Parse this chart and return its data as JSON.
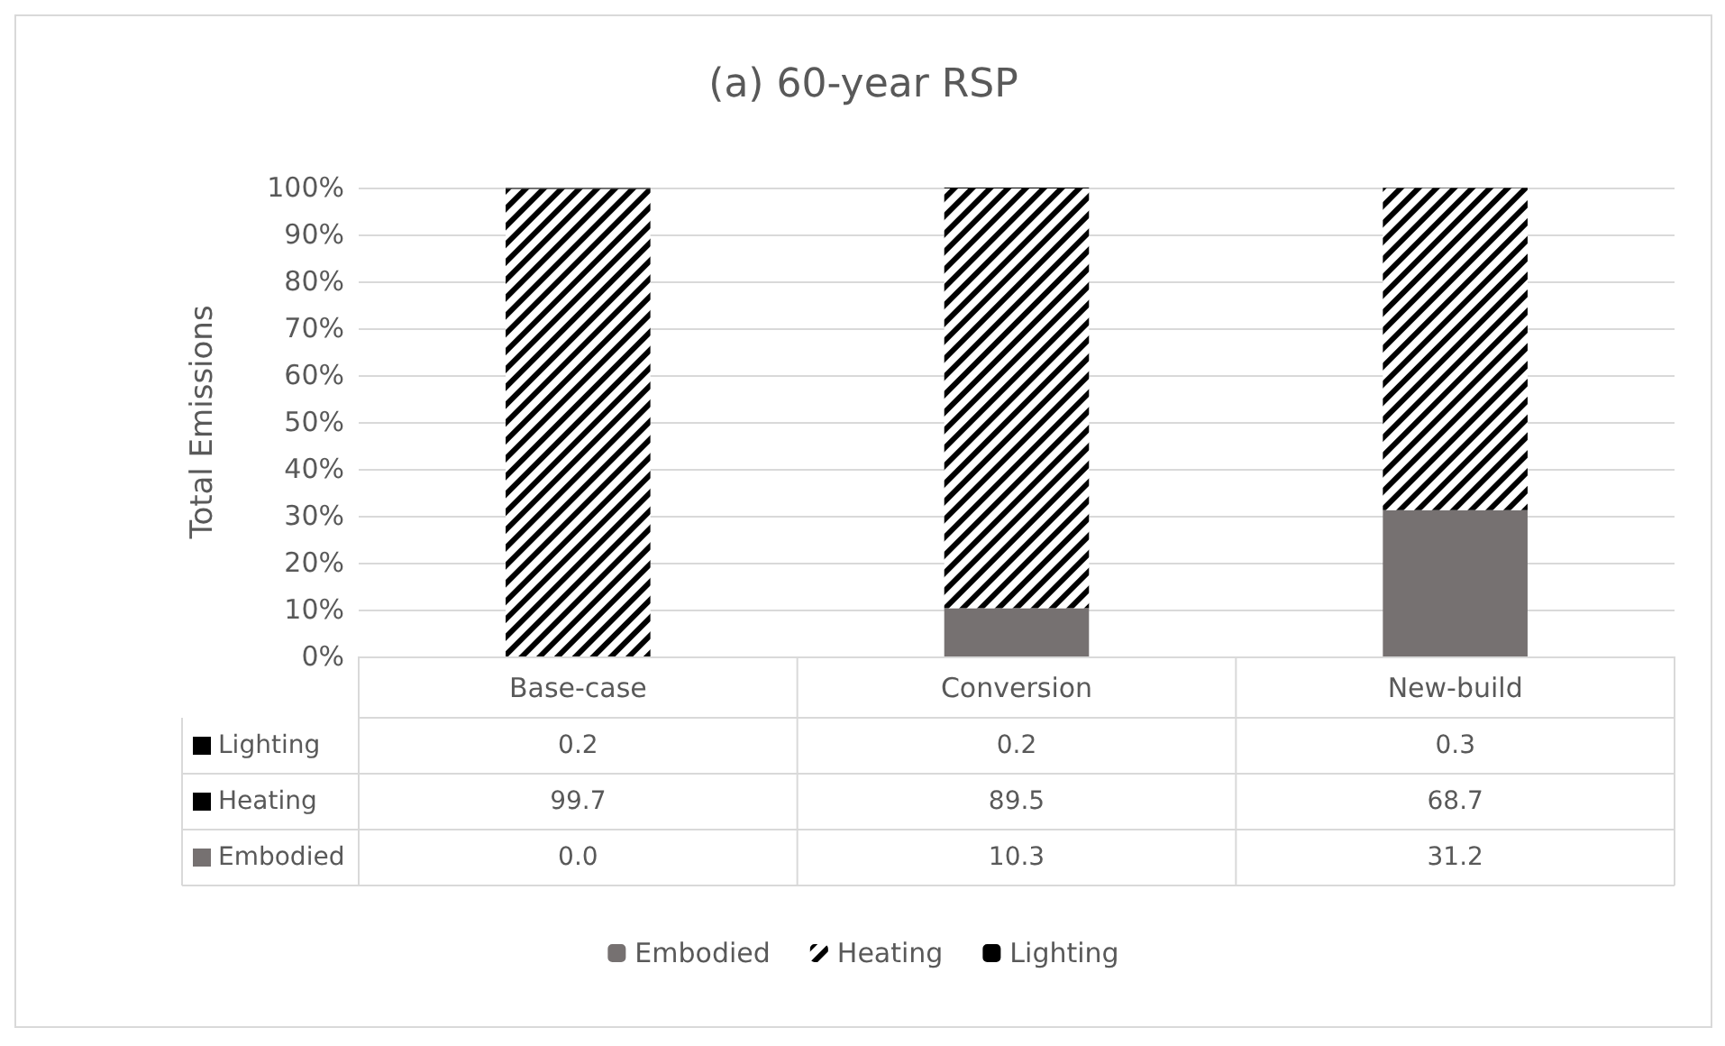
{
  "chart_data": {
    "type": "bar",
    "title": "(a) 60-year RSP",
    "ylabel": "Total Emissions",
    "categories": [
      "Base-case",
      "Conversion",
      "New-build"
    ],
    "stacked": true,
    "series": [
      {
        "name": "Embodied",
        "color": "#767171",
        "values": [
          0.0,
          10.3,
          31.2
        ],
        "value_labels": [
          "0.0",
          "10.3",
          "31.2"
        ]
      },
      {
        "name": "Heating",
        "color": "#000000",
        "values": [
          99.7,
          89.5,
          68.7
        ],
        "value_labels": [
          "99.7",
          "89.5",
          "68.7"
        ]
      },
      {
        "name": "Lighting",
        "color": "#000000",
        "values": [
          0.2,
          0.2,
          0.3
        ],
        "value_labels": [
          "0.2",
          "0.2",
          "0.3"
        ]
      }
    ],
    "ylim": [
      0,
      100
    ],
    "yticks": [
      {
        "value": 0,
        "label": "0%"
      },
      {
        "value": 10,
        "label": "10%"
      },
      {
        "value": 20,
        "label": "20%"
      },
      {
        "value": 30,
        "label": "30%"
      },
      {
        "value": 40,
        "label": "40%"
      },
      {
        "value": 50,
        "label": "50%"
      },
      {
        "value": 60,
        "label": "60%"
      },
      {
        "value": 70,
        "label": "70%"
      },
      {
        "value": 80,
        "label": "80%"
      },
      {
        "value": 90,
        "label": "90%"
      },
      {
        "value": 100,
        "label": "100%"
      }
    ],
    "grid": "y",
    "legend": "bottom"
  }
}
